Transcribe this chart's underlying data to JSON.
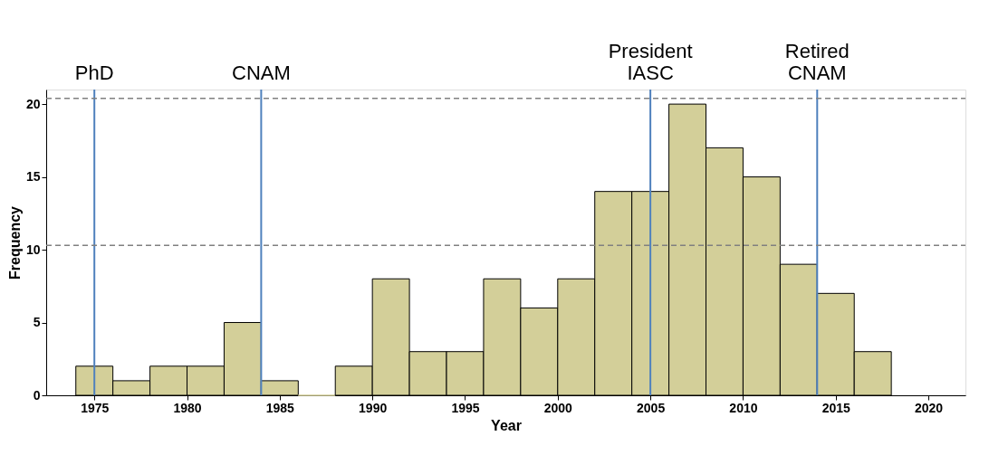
{
  "chart_data": {
    "type": "histogram",
    "xlabel": "Year",
    "ylabel": "Frequency",
    "bins": [
      1974,
      1976,
      1978,
      1980,
      1982,
      1984,
      1986,
      1988,
      1990,
      1992,
      1994,
      1996,
      1998,
      2000,
      2002,
      2004,
      2006,
      2008,
      2010,
      2012,
      2014,
      2016,
      2018
    ],
    "values": [
      2,
      1,
      2,
      2,
      5,
      1,
      0,
      2,
      8,
      3,
      3,
      8,
      6,
      8,
      14,
      14,
      20,
      17,
      15,
      9,
      7,
      3
    ],
    "color": "#d3cf99",
    "xlim": [
      1972.4,
      2022
    ],
    "xticks": [
      1975,
      1980,
      1985,
      1990,
      1995,
      2000,
      2005,
      2010,
      2015,
      2020
    ],
    "ylim": [
      0,
      21
    ],
    "yticks": [
      0,
      5,
      10,
      15,
      20
    ],
    "grid": false,
    "ref_lines": [
      {
        "axis": "x",
        "value": 1975,
        "label": "PhD",
        "color": "#4f81bd",
        "line_style": "solid"
      },
      {
        "axis": "x",
        "value": 1984,
        "label": "CNAM",
        "color": "#4f81bd",
        "line_style": "solid"
      },
      {
        "axis": "x",
        "value": 2005,
        "label": "President\nIASC",
        "color": "#4f81bd",
        "line_style": "solid"
      },
      {
        "axis": "x",
        "value": 2014,
        "label": "Retired\nCNAM",
        "color": "#4f81bd",
        "line_style": "solid"
      },
      {
        "axis": "y",
        "value": 20.4,
        "color": "#808080",
        "line_style": "dashed"
      },
      {
        "axis": "y",
        "value": 10.3,
        "color": "#808080",
        "line_style": "dashed"
      }
    ]
  }
}
